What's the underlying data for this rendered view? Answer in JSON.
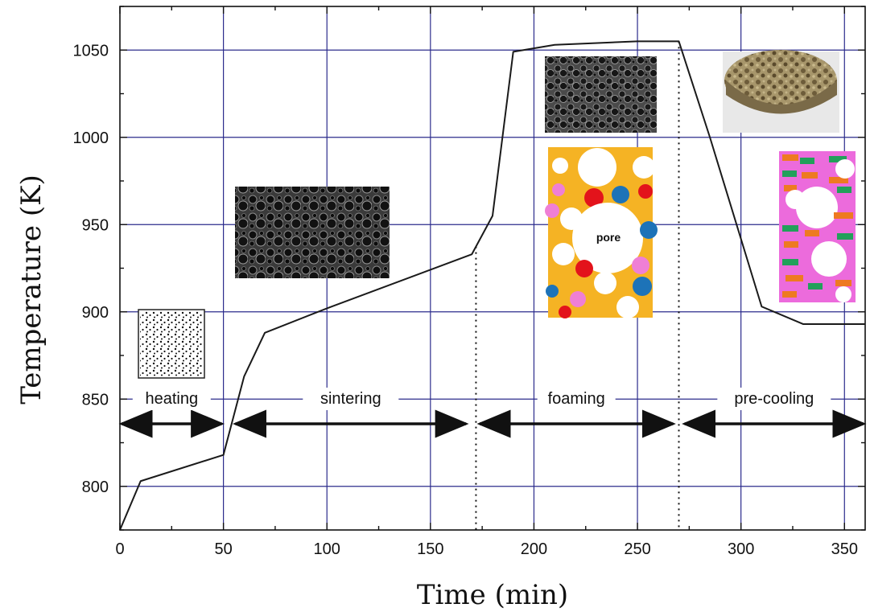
{
  "chart_data": {
    "type": "line",
    "xlabel": "Time (min)",
    "ylabel": "Temperature (K)",
    "xlim": [
      0,
      360
    ],
    "ylim": [
      775,
      1075
    ],
    "x_ticks": [
      0,
      50,
      100,
      150,
      200,
      250,
      300,
      350
    ],
    "y_ticks": [
      800,
      850,
      900,
      950,
      1000,
      1050
    ],
    "grid": true,
    "series": [
      {
        "x": [
          0,
          10,
          50,
          60,
          70,
          100,
          170,
          180,
          190,
          210,
          250,
          270,
          285,
          310,
          330,
          360
        ],
        "values": [
          775,
          803,
          818,
          863,
          888,
          902,
          933,
          955,
          1049,
          1053,
          1055,
          1055,
          1000,
          903,
          893,
          893
        ]
      }
    ],
    "phase_boundaries": [
      172,
      270
    ],
    "stages": [
      {
        "label": "heating",
        "start": 0,
        "end": 50
      },
      {
        "label": "sintering",
        "start": 55,
        "end": 168
      },
      {
        "label": "foaming",
        "start": 173,
        "end": 268
      },
      {
        "label": "pre-cooling",
        "start": 272,
        "end": 360
      }
    ],
    "annotations": [
      {
        "label": "pore"
      }
    ],
    "colors": {
      "grid": "#2b2b8c",
      "line": "#1a1a1a",
      "orange": "#f5b324",
      "red": "#e3131b",
      "blue": "#1d73b8",
      "pink": "#ef7fd5",
      "green": "#22a05a",
      "dark_orange": "#ee7a21",
      "magenta": "#ec6bdc"
    }
  }
}
